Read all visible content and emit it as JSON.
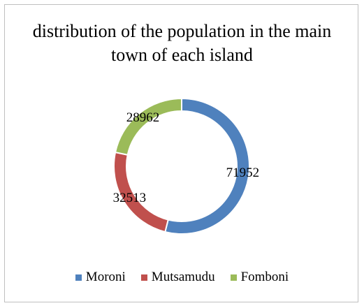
{
  "chart_data": {
    "type": "donut",
    "title": "distribution of the population in the main town of each island",
    "categories": [
      "Moroni",
      "Mutsamudu",
      "Fomboni"
    ],
    "values": [
      71952,
      32513,
      28962
    ],
    "colors": [
      "#4f81bd",
      "#c0504d",
      "#9bbb59"
    ]
  }
}
